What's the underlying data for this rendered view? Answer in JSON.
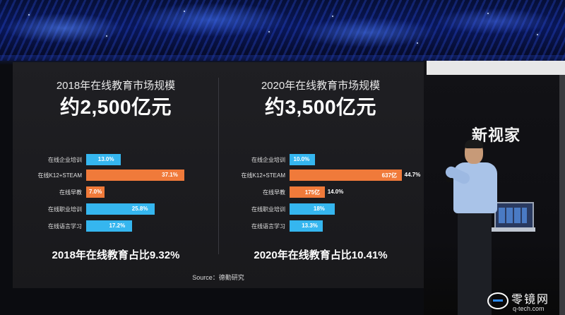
{
  "left": {
    "subtitle": "2018年在线教育市场规模",
    "headline": "约2,500亿元",
    "bars": [
      {
        "label": "在线企业培训",
        "value": "13.0%",
        "pct": 13.0,
        "color": "blue"
      },
      {
        "label": "在线K12+STEAM",
        "value": "37.1%",
        "pct": 37.1,
        "color": "orange"
      },
      {
        "label": "在线早教",
        "value": "7.0%",
        "pct": 7.0,
        "color": "orange"
      },
      {
        "label": "在线职业培训",
        "value": "25.8%",
        "pct": 25.8,
        "color": "blue"
      },
      {
        "label": "在线语言学习",
        "value": "17.2%",
        "pct": 17.2,
        "color": "blue"
      }
    ],
    "footer": "2018年在线教育占比9.32%"
  },
  "right": {
    "subtitle": "2020年在线教育市场规模",
    "headline": "约3,500亿元",
    "bars": [
      {
        "label": "在线企业培训",
        "value": "10.0%",
        "pct": 10.0,
        "color": "blue",
        "inner": "",
        "outer": ""
      },
      {
        "label": "在线K12+STEAM",
        "value": "",
        "pct": 44.7,
        "color": "orange",
        "inner": "637亿",
        "outer": "44.7%"
      },
      {
        "label": "在线早教",
        "value": "",
        "pct": 14.0,
        "color": "orange",
        "inner": "175亿",
        "outer": "14.0%"
      },
      {
        "label": "在线职业培训",
        "value": "18%",
        "pct": 18.0,
        "color": "blue",
        "inner": "",
        "outer": ""
      },
      {
        "label": "在线语言学习",
        "value": "13.3%",
        "pct": 13.3,
        "color": "blue",
        "inner": "",
        "outer": ""
      }
    ],
    "footer": "2020年在线教育占比10.41%"
  },
  "source": "Source：德勤研究",
  "brand": "新视家",
  "watermark": {
    "cn": "零镜网",
    "en": "q-tech.com"
  },
  "colors": {
    "blue": "#35b6ef",
    "orange": "#f07a3a",
    "background": "#1f1f23"
  }
}
